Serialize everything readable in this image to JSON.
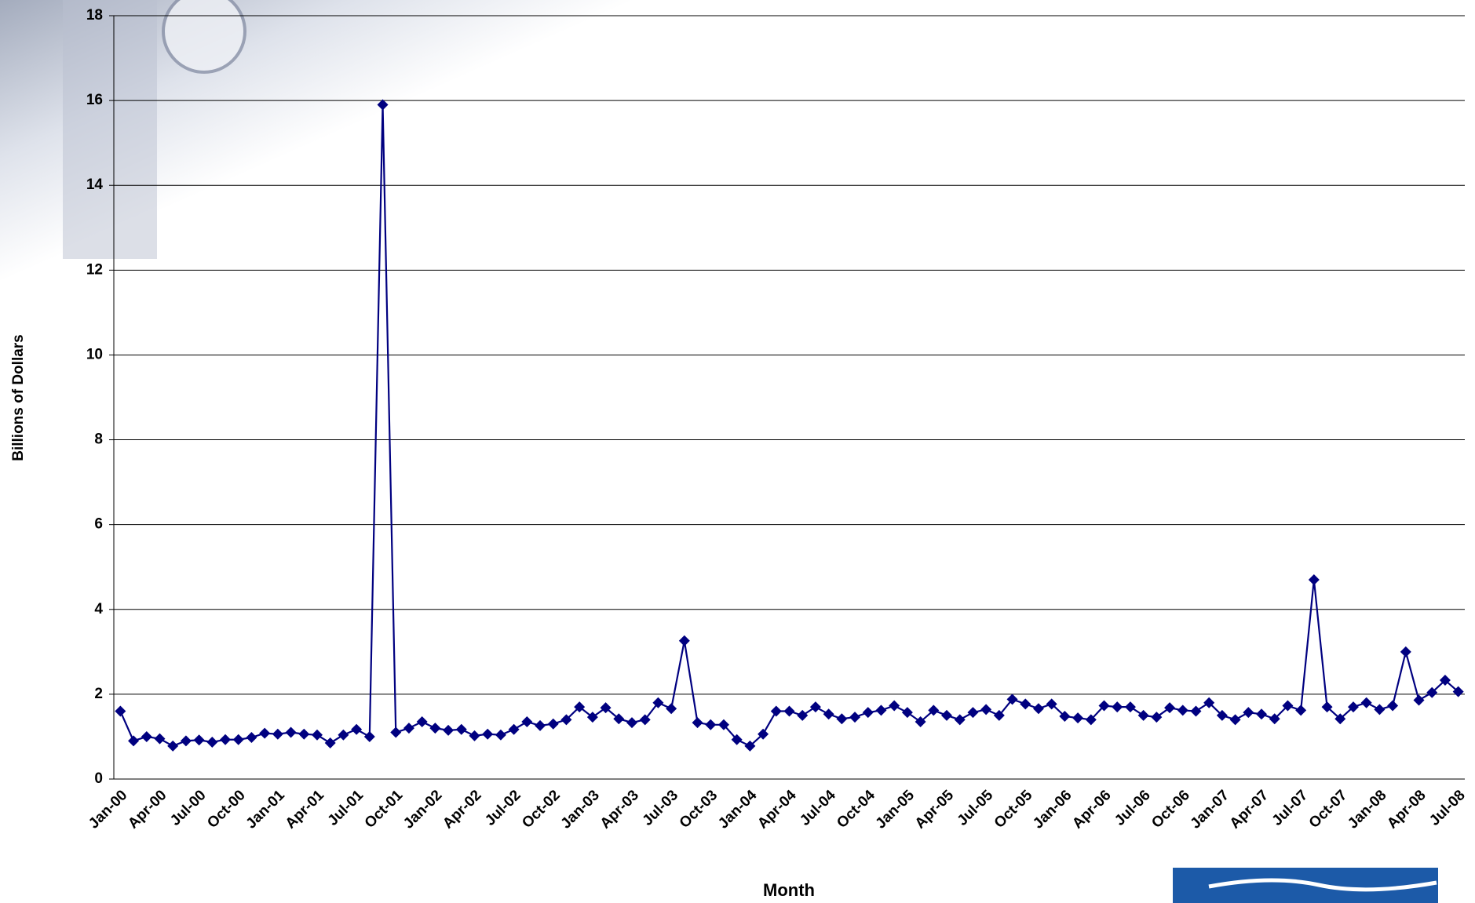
{
  "chart_data": {
    "type": "line",
    "y_label": "Billions of Dollars",
    "x_label": "Month",
    "categories": [
      "Jan-00",
      null,
      null,
      "Apr-00",
      null,
      null,
      "Jul-00",
      null,
      null,
      "Oct-00",
      null,
      null,
      "Jan-01",
      null,
      null,
      "Apr-01",
      null,
      null,
      "Jul-01",
      null,
      null,
      "Oct-01",
      null,
      null,
      "Jan-02",
      null,
      null,
      "Apr-02",
      null,
      null,
      "Jul-02",
      null,
      null,
      "Oct-02",
      null,
      null,
      "Jan-03",
      null,
      null,
      "Apr-03",
      null,
      null,
      "Jul-03",
      null,
      null,
      "Oct-03",
      null,
      null,
      "Jan-04",
      null,
      null,
      "Apr-04",
      null,
      null,
      "Jul-04",
      null,
      null,
      "Oct-04",
      null,
      null,
      "Jan-05",
      null,
      null,
      "Apr-05",
      null,
      null,
      "Jul-05",
      null,
      null,
      "Oct-05",
      null,
      null,
      "Jan-06",
      null,
      null,
      "Apr-06",
      null,
      null,
      "Jul-06",
      null,
      null,
      "Oct-06",
      null,
      null,
      "Jan-07",
      null,
      null,
      "Apr-07",
      null,
      null,
      "Jul-07",
      null,
      null,
      "Oct-07",
      null,
      null,
      "Jan-08",
      null,
      null,
      "Apr-08",
      null,
      null,
      "Jul-08"
    ],
    "values": [
      1.6,
      0.9,
      1.0,
      0.95,
      0.78,
      0.9,
      0.92,
      0.87,
      0.93,
      0.93,
      0.98,
      1.08,
      1.06,
      1.1,
      1.06,
      1.04,
      0.85,
      1.04,
      1.17,
      1.0,
      15.9,
      1.1,
      1.2,
      1.35,
      1.2,
      1.15,
      1.17,
      1.02,
      1.06,
      1.04,
      1.17,
      1.35,
      1.26,
      1.3,
      1.4,
      1.7,
      1.46,
      1.68,
      1.42,
      1.33,
      1.4,
      1.8,
      1.66,
      3.26,
      1.33,
      1.28,
      1.28,
      0.93,
      0.78,
      1.06,
      1.6,
      1.6,
      1.5,
      1.7,
      1.53,
      1.42,
      1.46,
      1.57,
      1.62,
      1.73,
      1.57,
      1.35,
      1.62,
      1.5,
      1.4,
      1.57,
      1.64,
      1.5,
      1.88,
      1.77,
      1.66,
      1.77,
      1.48,
      1.44,
      1.4,
      1.73,
      1.7,
      1.7,
      1.5,
      1.46,
      1.68,
      1.62,
      1.6,
      1.8,
      1.5,
      1.4,
      1.57,
      1.53,
      1.42,
      1.73,
      1.62,
      4.7,
      1.7,
      1.42,
      1.7,
      1.8,
      1.64,
      1.73,
      3.0,
      1.86,
      2.04,
      2.33,
      2.06
    ],
    "color": "#000080",
    "ylim": [
      0,
      18
    ],
    "yticks": [
      0,
      2,
      4,
      6,
      8,
      10,
      12,
      14,
      16,
      18
    ],
    "grid": true
  }
}
